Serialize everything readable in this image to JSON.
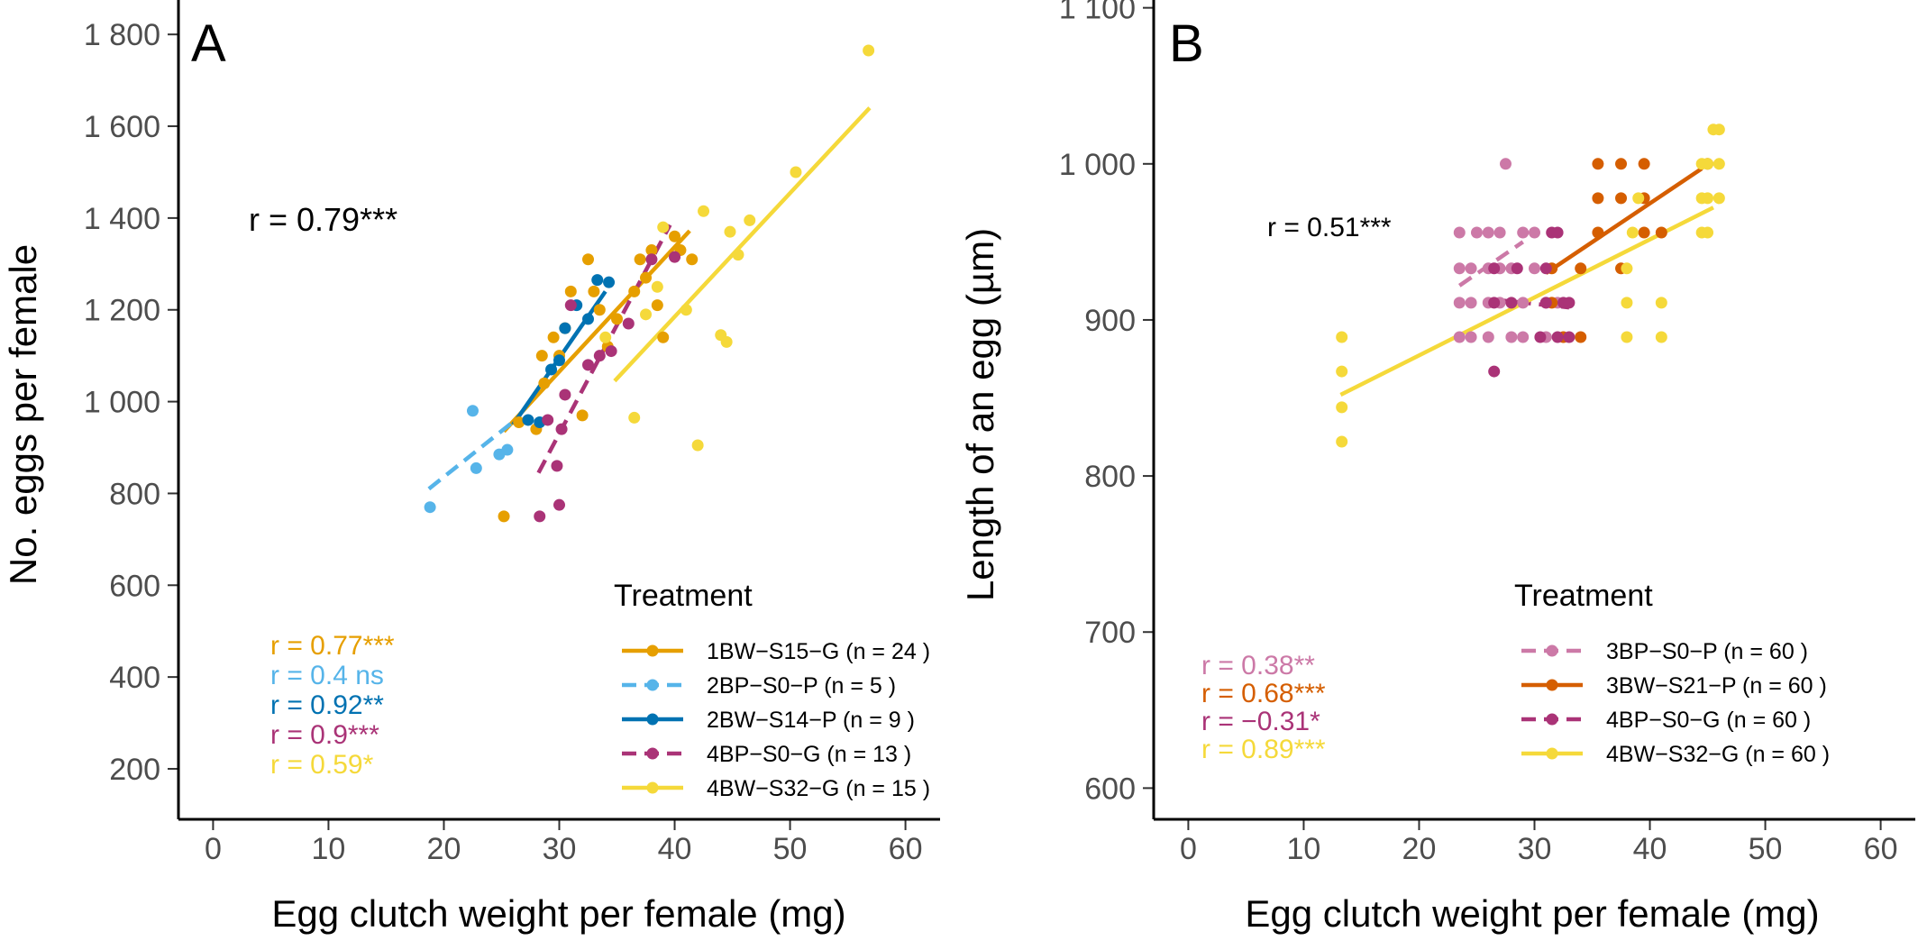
{
  "chart_data": [
    {
      "panel": "A",
      "type": "scatter",
      "xlabel": "Egg clutch weight per female (mg)",
      "ylabel": "No. eggs per female",
      "xlim": [
        -3,
        63
      ],
      "ylim": [
        90,
        1875
      ],
      "xticks": [
        0,
        10,
        20,
        30,
        40,
        50,
        60
      ],
      "xtick_labels": [
        "0",
        "10",
        "20",
        "30",
        "40",
        "50",
        "60"
      ],
      "yticks": [
        200,
        400,
        600,
        800,
        1000,
        1200,
        1400,
        1600,
        1800
      ],
      "ytick_labels": [
        "200",
        "400",
        "600",
        "800",
        "1 000",
        "1 200",
        "1 400",
        "1 600",
        "1 800"
      ],
      "overall_r": "r = 0.79***",
      "legend_title": "Treatment",
      "legend_position": "bottom-right",
      "series": [
        {
          "name": "1BW−S15−G (n = 24 )",
          "color": "#E69F00",
          "dash": false,
          "r_label": "r = 0.77***",
          "line": [
            [
              25.2,
              935
            ],
            [
              41.3,
              1372
            ]
          ],
          "points": [
            [
              25.2,
              750
            ],
            [
              26.5,
              955
            ],
            [
              28,
              940
            ],
            [
              28.5,
              1100
            ],
            [
              28.7,
              1040
            ],
            [
              29.5,
              1140
            ],
            [
              30,
              1100
            ],
            [
              30.5,
              1160
            ],
            [
              31,
              1240
            ],
            [
              32,
              970
            ],
            [
              32.5,
              1310
            ],
            [
              33,
              1240
            ],
            [
              33.5,
              1200
            ],
            [
              34.2,
              1120
            ],
            [
              35,
              1180
            ],
            [
              36.5,
              1240
            ],
            [
              37,
              1310
            ],
            [
              37.5,
              1270
            ],
            [
              38,
              1330
            ],
            [
              38.5,
              1210
            ],
            [
              39,
              1140
            ],
            [
              40,
              1360
            ],
            [
              40.5,
              1330
            ],
            [
              41.5,
              1310
            ]
          ]
        },
        {
          "name": "2BP−S0−P (n = 5 )",
          "color": "#56B4E9",
          "dash": true,
          "r_label": "r = 0.4 ns",
          "line": [
            [
              18.7,
              810
            ],
            [
              26.2,
              960
            ]
          ],
          "points": [
            [
              18.8,
              770
            ],
            [
              22.5,
              980
            ],
            [
              22.8,
              855
            ],
            [
              24.8,
              885
            ],
            [
              25.5,
              895
            ]
          ]
        },
        {
          "name": "2BW−S14−P (n = 9 )",
          "color": "#0072B2",
          "dash": false,
          "r_label": "r = 0.92**",
          "line": [
            [
              26,
              950
            ],
            [
              34,
              1240
            ]
          ],
          "points": [
            [
              27.3,
              960
            ],
            [
              28.3,
              955
            ],
            [
              29.3,
              1070
            ],
            [
              30,
              1090
            ],
            [
              30.5,
              1160
            ],
            [
              31.5,
              1210
            ],
            [
              32.5,
              1180
            ],
            [
              33.3,
              1265
            ],
            [
              34.3,
              1260
            ]
          ]
        },
        {
          "name": "4BP−S0−G (n = 13 )",
          "color": "#AA3377",
          "dash": true,
          "r_label": "r = 0.9***",
          "line": [
            [
              28.2,
              845
            ],
            [
              39.6,
              1385
            ]
          ],
          "points": [
            [
              28.3,
              750
            ],
            [
              29,
              960
            ],
            [
              29.8,
              860
            ],
            [
              30,
              775
            ],
            [
              30.2,
              940
            ],
            [
              30.5,
              1015
            ],
            [
              31,
              1210
            ],
            [
              32.5,
              1080
            ],
            [
              33.5,
              1100
            ],
            [
              34.5,
              1110
            ],
            [
              36,
              1170
            ],
            [
              38,
              1310
            ],
            [
              40,
              1315
            ]
          ]
        },
        {
          "name": "4BW−S32−G (n = 15 )",
          "color": "#F5D93A",
          "dash": false,
          "r_label": "r = 0.59*",
          "line": [
            [
              34.8,
              1045
            ],
            [
              56.9,
              1640
            ]
          ],
          "points": [
            [
              36.5,
              965
            ],
            [
              37.5,
              1190
            ],
            [
              39,
              1380
            ],
            [
              41,
              1200
            ],
            [
              42,
              905
            ],
            [
              42.5,
              1415
            ],
            [
              44,
              1145
            ],
            [
              44.5,
              1130
            ],
            [
              44.8,
              1370
            ],
            [
              45.5,
              1320
            ],
            [
              46.5,
              1395
            ],
            [
              50.5,
              1500
            ],
            [
              56.8,
              1765
            ],
            [
              34,
              1140
            ],
            [
              38.5,
              1250
            ]
          ]
        }
      ]
    },
    {
      "panel": "B",
      "type": "scatter",
      "xlabel": "Egg clutch weight per female (mg)",
      "ylabel": "Length of an egg (µm)",
      "xlim": [
        -3,
        63
      ],
      "ylim": [
        580,
        1105
      ],
      "xticks": [
        0,
        10,
        20,
        30,
        40,
        50,
        60
      ],
      "xtick_labels": [
        "0",
        "10",
        "20",
        "30",
        "40",
        "50",
        "60"
      ],
      "yticks": [
        600,
        700,
        800,
        900,
        1000,
        1100
      ],
      "ytick_labels": [
        "600",
        "700",
        "800",
        "900",
        "1 000",
        "1 100"
      ],
      "overall_r": "r = 0.51***",
      "legend_title": "Treatment",
      "legend_position": "bottom-right",
      "series": [
        {
          "name": "3BP−S0−P (n = 60 )",
          "color": "#CC79A7",
          "dash": true,
          "r_label": "r = 0.38**",
          "line": [
            [
              23.5,
              922
            ],
            [
              29,
              950
            ]
          ],
          "points": [
            [
              23.5,
              889
            ],
            [
              23.5,
              911
            ],
            [
              23.5,
              933
            ],
            [
              23.5,
              956
            ],
            [
              24.5,
              889
            ],
            [
              24.5,
              911
            ],
            [
              24.5,
              933
            ],
            [
              25,
              956
            ],
            [
              26,
              889
            ],
            [
              26,
              911
            ],
            [
              26,
              933
            ],
            [
              26,
              956
            ],
            [
              27,
              911
            ],
            [
              27,
              933
            ],
            [
              27,
              956
            ],
            [
              27.5,
              1000
            ],
            [
              28,
              889
            ],
            [
              28,
              933
            ],
            [
              29,
              889
            ],
            [
              29,
              911
            ],
            [
              29,
              956
            ],
            [
              30,
              933
            ],
            [
              30,
              956
            ],
            [
              31,
              889
            ],
            [
              31,
              911
            ],
            [
              32,
              911
            ]
          ]
        },
        {
          "name": "3BW−S21−P (n = 60 )",
          "color": "#D55E00",
          "dash": false,
          "r_label": "r = 0.68***",
          "line": [
            [
              31,
              930
            ],
            [
              44.5,
              997
            ]
          ],
          "points": [
            [
              31.5,
              933
            ],
            [
              31.5,
              911
            ],
            [
              32.5,
              889
            ],
            [
              34,
              933
            ],
            [
              34,
              889
            ],
            [
              35.5,
              1000
            ],
            [
              35.5,
              978
            ],
            [
              35.5,
              956
            ],
            [
              37.5,
              1000
            ],
            [
              37.5,
              978
            ],
            [
              37.5,
              933
            ],
            [
              39.5,
              1000
            ],
            [
              39.5,
              978
            ],
            [
              39.5,
              956
            ],
            [
              41,
              956
            ],
            [
              45,
              1000
            ]
          ]
        },
        {
          "name": "4BP−S0−G (n = 60 )",
          "color": "#AA3377",
          "dash": true,
          "r_label": "r = −0.31*",
          "line": [
            [
              26.5,
              913
            ],
            [
              33,
              908
            ]
          ],
          "points": [
            [
              26.5,
              867
            ],
            [
              26.5,
              911
            ],
            [
              26.5,
              933
            ],
            [
              28,
              911
            ],
            [
              28.5,
              933
            ],
            [
              30.5,
              889
            ],
            [
              31,
              911
            ],
            [
              31,
              933
            ],
            [
              31.5,
              956
            ],
            [
              32,
              889
            ],
            [
              32.5,
              911
            ],
            [
              32,
              956
            ],
            [
              33,
              911
            ],
            [
              33,
              889
            ]
          ]
        },
        {
          "name": "4BW−S32−G (n = 60 )",
          "color": "#F5D93A",
          "dash": false,
          "r_label": "r = 0.89***",
          "line": [
            [
              13.2,
              852
            ],
            [
              45.5,
              972
            ]
          ],
          "points": [
            [
              13.3,
              822
            ],
            [
              13.3,
              844
            ],
            [
              13.3,
              867
            ],
            [
              13.3,
              889
            ],
            [
              38,
              889
            ],
            [
              38,
              911
            ],
            [
              38,
              933
            ],
            [
              38.5,
              956
            ],
            [
              39,
              978
            ],
            [
              41,
              889
            ],
            [
              41,
              911
            ],
            [
              44.5,
              956
            ],
            [
              44.5,
              978
            ],
            [
              44.5,
              1000
            ],
            [
              45,
              956
            ],
            [
              45,
              978
            ],
            [
              45,
              1000
            ],
            [
              45.5,
              1022
            ],
            [
              46,
              978
            ],
            [
              46,
              1000
            ],
            [
              46,
              1022
            ]
          ]
        }
      ]
    }
  ]
}
